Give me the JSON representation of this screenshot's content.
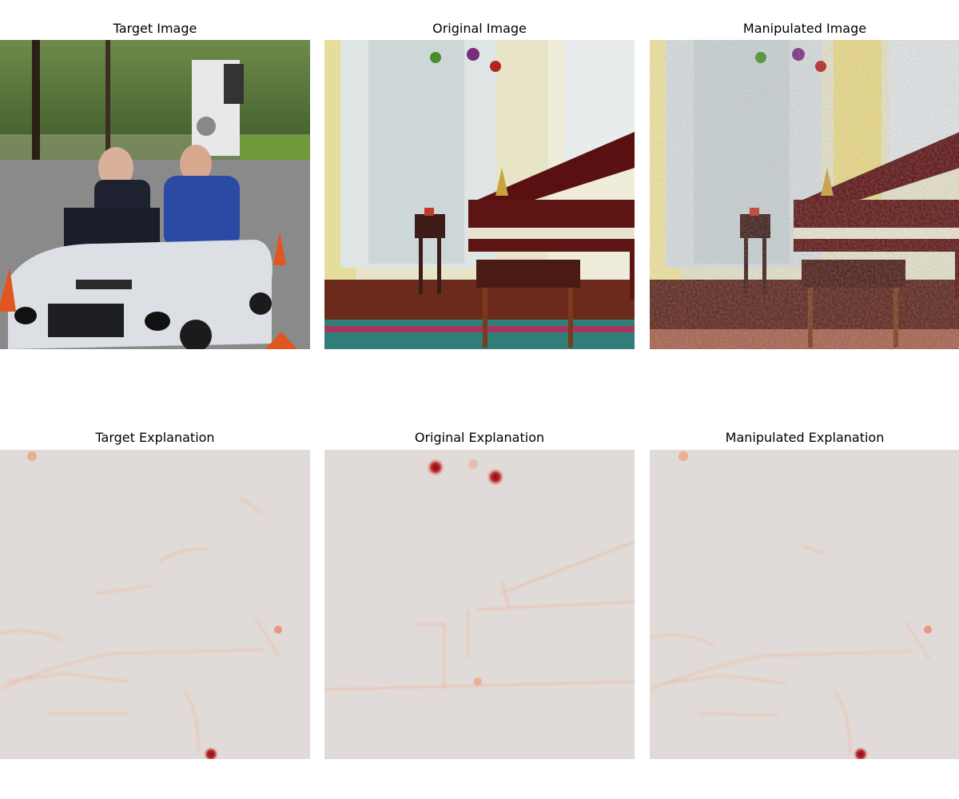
{
  "figure": {
    "rows": [
      {
        "titles": [
          "Target Image",
          "Original Image",
          "Manipulated Image"
        ]
      },
      {
        "titles": [
          "Target Explanation",
          "Original Explanation",
          "Manipulated Explanation"
        ]
      }
    ]
  },
  "colors": {
    "background": "#ffffff",
    "heatmap_base": "#e0dbd8",
    "heatmap_hot": "#c0282a",
    "heatmap_warm": "#f4a382"
  }
}
